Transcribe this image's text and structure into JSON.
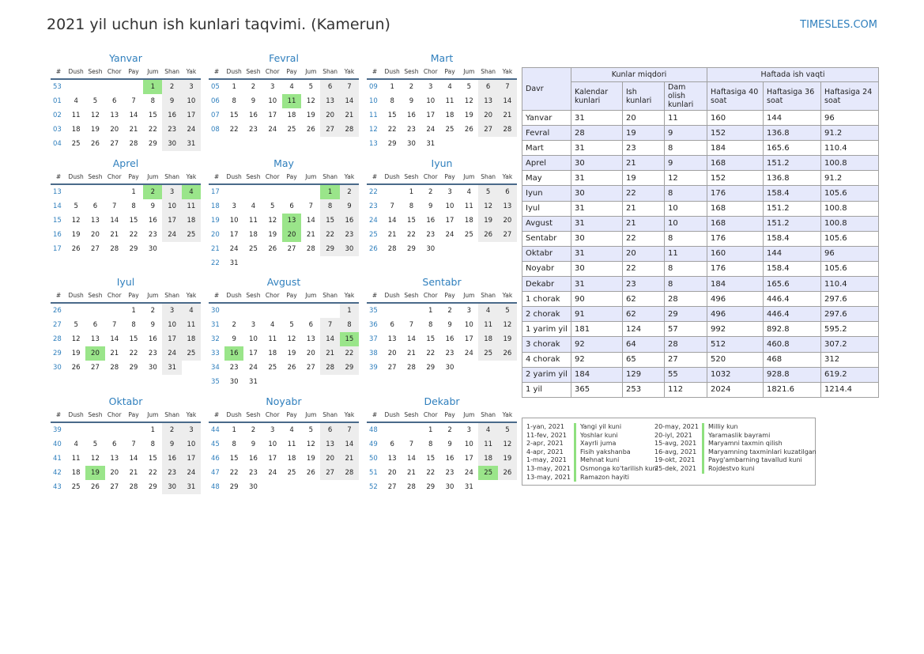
{
  "title": "2021 yil uchun ish kunlari taqvimi. (Kamerun)",
  "site": "TIMESLES.COM",
  "weekday_headers": [
    "#",
    "Dush",
    "Sesh",
    "Chor",
    "Pay",
    "Jum",
    "Shan",
    "Yak"
  ],
  "accent_colors": {
    "link": "#2f7fbd",
    "holiday": "#9ae58a",
    "weekend": "#ededed",
    "table_header": "#e6e9fb"
  },
  "months": [
    {
      "name": "Yanvar",
      "start": 4,
      "days": 31,
      "weeks": [
        "53",
        "01",
        "02",
        "03",
        "04"
      ],
      "holidays": [
        1
      ]
    },
    {
      "name": "Fevral",
      "start": 0,
      "days": 28,
      "weeks": [
        "05",
        "06",
        "07",
        "08"
      ],
      "holidays": [
        11
      ]
    },
    {
      "name": "Mart",
      "start": 0,
      "days": 31,
      "weeks": [
        "09",
        "10",
        "11",
        "12",
        "13"
      ],
      "holidays": []
    },
    {
      "name": "Aprel",
      "start": 3,
      "days": 30,
      "weeks": [
        "13",
        "14",
        "15",
        "16",
        "17"
      ],
      "holidays": [
        2,
        4
      ]
    },
    {
      "name": "May",
      "start": 5,
      "days": 31,
      "weeks": [
        "17",
        "18",
        "19",
        "20",
        "21",
        "22"
      ],
      "holidays": [
        1,
        13,
        20
      ]
    },
    {
      "name": "Iyun",
      "start": 1,
      "days": 30,
      "weeks": [
        "22",
        "23",
        "24",
        "25",
        "26"
      ],
      "holidays": []
    },
    {
      "name": "Iyul",
      "start": 3,
      "days": 31,
      "weeks": [
        "26",
        "27",
        "28",
        "29",
        "30"
      ],
      "holidays": [
        20
      ]
    },
    {
      "name": "Avgust",
      "start": 6,
      "days": 31,
      "weeks": [
        "30",
        "31",
        "32",
        "33",
        "34",
        "35"
      ],
      "holidays": [
        15,
        16
      ]
    },
    {
      "name": "Sentabr",
      "start": 2,
      "days": 30,
      "weeks": [
        "35",
        "36",
        "37",
        "38",
        "39"
      ],
      "holidays": []
    },
    {
      "name": "Oktabr",
      "start": 4,
      "days": 31,
      "weeks": [
        "39",
        "40",
        "41",
        "42",
        "43"
      ],
      "holidays": [
        19
      ]
    },
    {
      "name": "Noyabr",
      "start": 0,
      "days": 30,
      "weeks": [
        "44",
        "45",
        "46",
        "47",
        "48"
      ],
      "holidays": []
    },
    {
      "name": "Dekabr",
      "start": 2,
      "days": 31,
      "weeks": [
        "48",
        "49",
        "50",
        "51",
        "52"
      ],
      "holidays": [
        25
      ]
    }
  ],
  "summary": {
    "header_period": "Davr",
    "group_days": "Kunlar miqdori",
    "group_hours": "Haftada ish vaqti",
    "sub_headers": [
      "Kalendar kunlari",
      "Ish kunlari",
      "Dam olish kunlari",
      "Haftasiga 40 soat",
      "Haftasiga 36 soat",
      "Haftasiga 24 soat"
    ],
    "rows": [
      [
        "Yanvar",
        "31",
        "20",
        "11",
        "160",
        "144",
        "96"
      ],
      [
        "Fevral",
        "28",
        "19",
        "9",
        "152",
        "136.8",
        "91.2"
      ],
      [
        "Mart",
        "31",
        "23",
        "8",
        "184",
        "165.6",
        "110.4"
      ],
      [
        "Aprel",
        "30",
        "21",
        "9",
        "168",
        "151.2",
        "100.8"
      ],
      [
        "May",
        "31",
        "19",
        "12",
        "152",
        "136.8",
        "91.2"
      ],
      [
        "Iyun",
        "30",
        "22",
        "8",
        "176",
        "158.4",
        "105.6"
      ],
      [
        "Iyul",
        "31",
        "21",
        "10",
        "168",
        "151.2",
        "100.8"
      ],
      [
        "Avgust",
        "31",
        "21",
        "10",
        "168",
        "151.2",
        "100.8"
      ],
      [
        "Sentabr",
        "30",
        "22",
        "8",
        "176",
        "158.4",
        "105.6"
      ],
      [
        "Oktabr",
        "31",
        "20",
        "11",
        "160",
        "144",
        "96"
      ],
      [
        "Noyabr",
        "30",
        "22",
        "8",
        "176",
        "158.4",
        "105.6"
      ],
      [
        "Dekabr",
        "31",
        "23",
        "8",
        "184",
        "165.6",
        "110.4"
      ],
      [
        "1 chorak",
        "90",
        "62",
        "28",
        "496",
        "446.4",
        "297.6"
      ],
      [
        "2 chorak",
        "91",
        "62",
        "29",
        "496",
        "446.4",
        "297.6"
      ],
      [
        "1 yarim yil",
        "181",
        "124",
        "57",
        "992",
        "892.8",
        "595.2"
      ],
      [
        "3 chorak",
        "92",
        "64",
        "28",
        "512",
        "460.8",
        "307.2"
      ],
      [
        "4 chorak",
        "92",
        "65",
        "27",
        "520",
        "468",
        "312"
      ],
      [
        "2 yarim yil",
        "184",
        "129",
        "55",
        "1032",
        "928.8",
        "619.2"
      ],
      [
        "1 yil",
        "365",
        "253",
        "112",
        "2024",
        "1821.6",
        "1214.4"
      ]
    ]
  },
  "holidays_list": [
    [
      {
        "date": "1-yan, 2021",
        "name": "Yangi yil kuni"
      },
      {
        "date": "11-fev, 2021",
        "name": "Yoshlar kuni"
      },
      {
        "date": "2-apr, 2021",
        "name": "Xayrli juma"
      },
      {
        "date": "4-apr, 2021",
        "name": "Fisih yakshanba"
      },
      {
        "date": "1-may, 2021",
        "name": "Mehnat kuni"
      },
      {
        "date": "13-may, 2021",
        "name": "Osmonga ko'tarilish kuni"
      },
      {
        "date": "13-may, 2021",
        "name": "Ramazon hayiti"
      }
    ],
    [
      {
        "date": "20-may, 2021",
        "name": "Milliy kun"
      },
      {
        "date": "20-iyl, 2021",
        "name": "Yaramaslik bayrami"
      },
      {
        "date": "15-avg, 2021",
        "name": "Maryamni taxmin qilish"
      },
      {
        "date": "16-avg, 2021",
        "name": "Maryamning taxminlari kuzatilgan"
      },
      {
        "date": "19-okt, 2021",
        "name": "Payg'ambarning tavallud kuni"
      },
      {
        "date": "25-dek, 2021",
        "name": "Rojdestvo kuni"
      }
    ]
  ]
}
